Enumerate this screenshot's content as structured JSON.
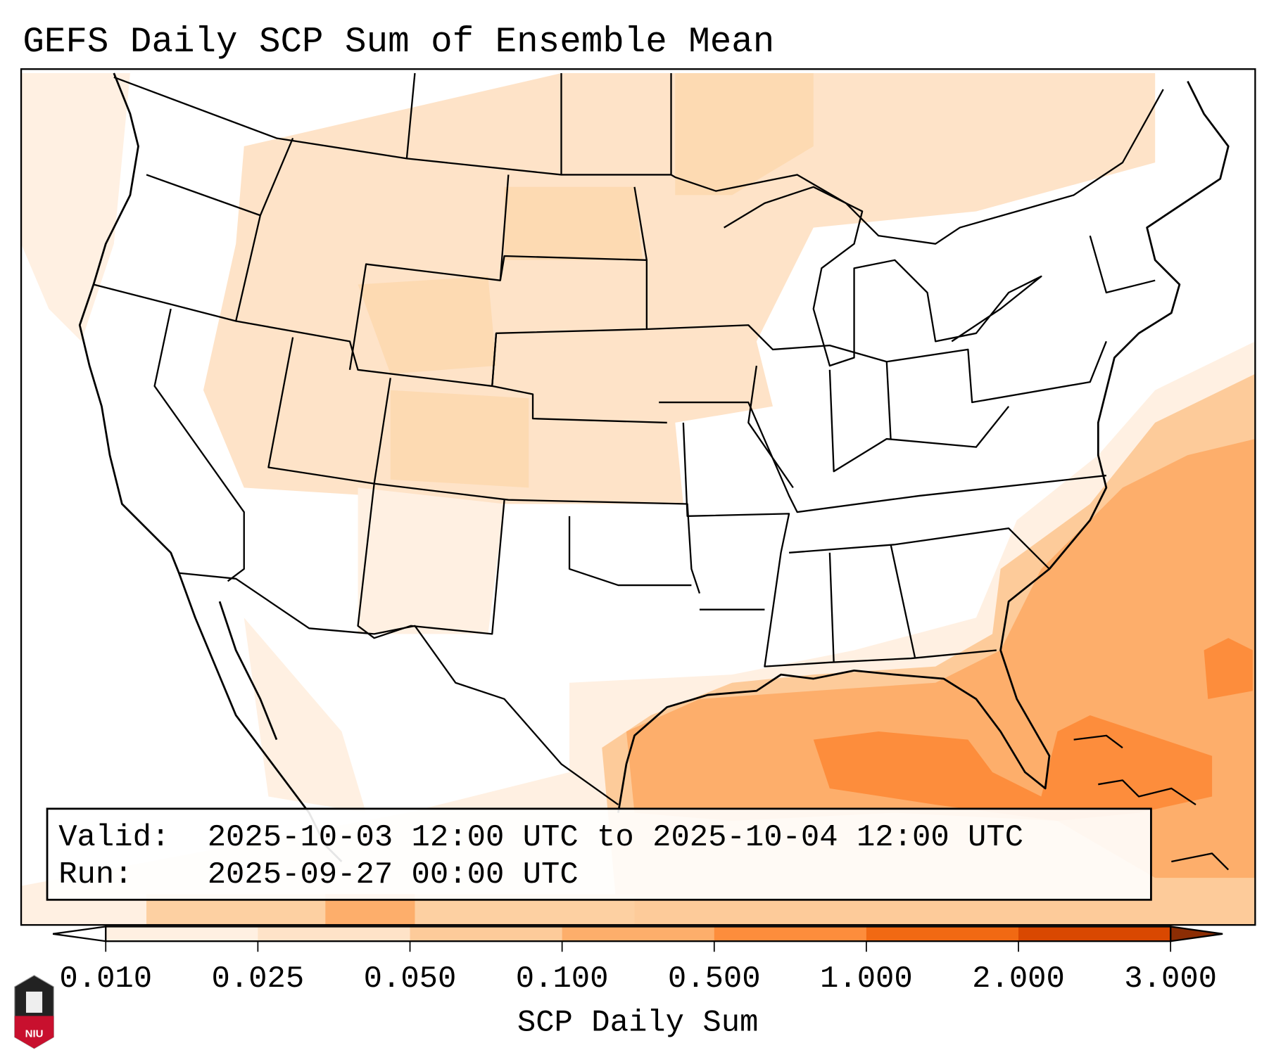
{
  "title": "GEFS Daily SCP Sum of Ensemble Mean",
  "info_box": {
    "valid_label": "Valid:",
    "valid_text": "2025-10-03 12:00 UTC to 2025-10-04 12:00 UTC",
    "run_label": "Run:",
    "run_text": "2025-09-27 00:00 UTC"
  },
  "colorbar": {
    "label": "SCP Daily Sum",
    "ticks": [
      "0.010",
      "0.025",
      "0.050",
      "0.100",
      "0.500",
      "1.000",
      "2.000",
      "3.000"
    ],
    "under_color": "#ffffff",
    "over_color": "#8c2d04",
    "bin_colors": [
      "#fff0e2",
      "#fee3c8",
      "#fdcb9a",
      "#fdae6b",
      "#fd8d3c",
      "#f16913",
      "#d94801"
    ]
  },
  "logo": {
    "text": "NIU"
  }
}
